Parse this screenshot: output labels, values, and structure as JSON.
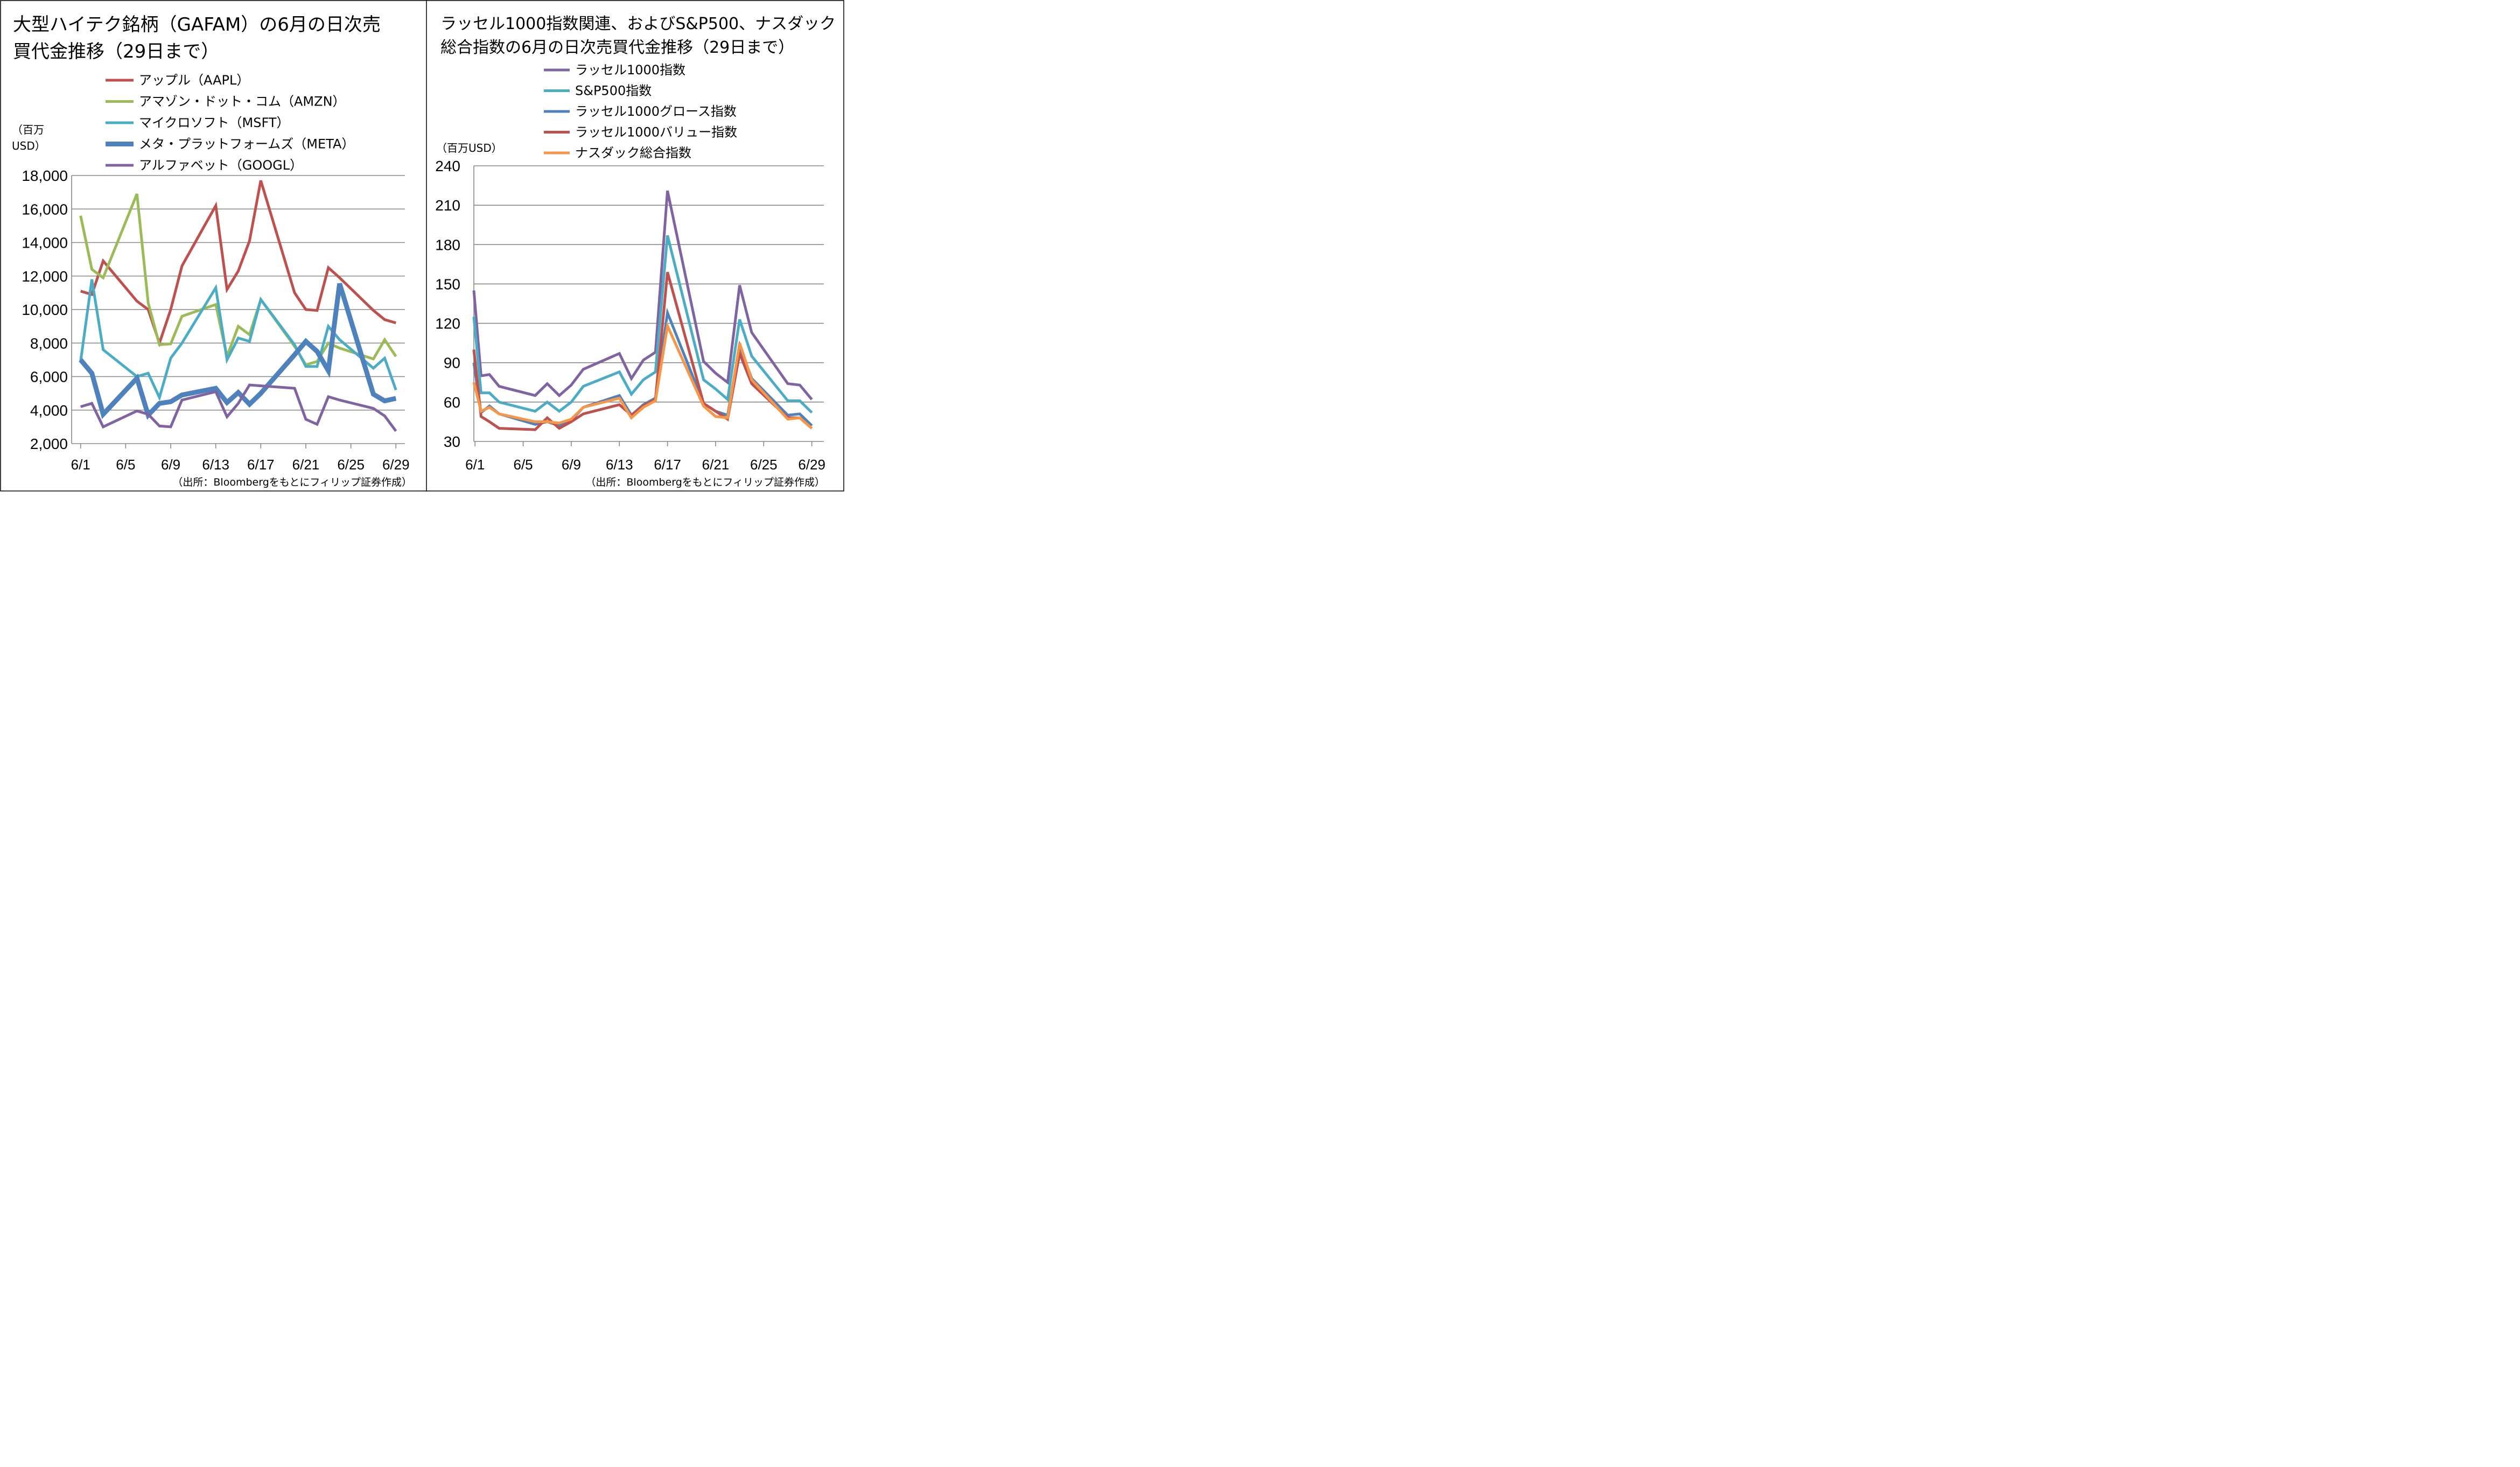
{
  "chart_data": [
    {
      "type": "line",
      "title_lines": [
        "大型ハイテク銘柄（GAFAM）の6月の日次売",
        "買代金推移（29日まで）"
      ],
      "unit_lines": [
        "（百万",
        "USD）"
      ],
      "source": "（出所：Bloombergをもとにフィリップ証券作成）",
      "xlabel": "",
      "ylabel": "",
      "ylim": [
        2000,
        18000
      ],
      "y_ticks": [
        2000,
        4000,
        6000,
        8000,
        10000,
        12000,
        14000,
        16000,
        18000
      ],
      "y_tick_labels": [
        "2,000",
        "4,000",
        "6,000",
        "8,000",
        "10,000",
        "12,000",
        "14,000",
        "16,000",
        "18,000"
      ],
      "x_ticks": [
        1,
        5,
        9,
        13,
        17,
        21,
        25,
        29
      ],
      "x_tick_labels": [
        "6/1",
        "6/5",
        "6/9",
        "6/13",
        "6/17",
        "6/21",
        "6/25",
        "6/29"
      ],
      "x_domain": [
        0.2,
        29.8
      ],
      "dates": [
        1,
        2,
        3,
        6,
        7,
        8,
        9,
        10,
        13,
        14,
        15,
        16,
        17,
        20,
        21,
        22,
        23,
        24,
        27,
        28,
        29
      ],
      "legend_placement": "top",
      "grid": true,
      "series": [
        {
          "name": "アップル（AAPL）",
          "color": "#C0504D",
          "width": 5,
          "values": [
            11100,
            10900,
            12900,
            10500,
            10000,
            8000,
            10000,
            12600,
            16200,
            11200,
            12300,
            14100,
            17700,
            11000,
            10000,
            9950,
            12500,
            11900,
            9950,
            9400,
            9200
          ]
        },
        {
          "name": "アマゾン・ドット・コム（AMZN）",
          "color": "#9BBB59",
          "width": 5,
          "values": [
            15600,
            12400,
            11900,
            16900,
            10400,
            7900,
            7950,
            9600,
            10300,
            7200,
            9000,
            8500,
            10600,
            7800,
            6700,
            6900,
            8000,
            7700,
            7050,
            8200,
            7200
          ]
        },
        {
          "name": "マイクロソフト（MSFT）",
          "color": "#4BACC6",
          "width": 5,
          "values": [
            6900,
            11800,
            7600,
            6000,
            6200,
            4750,
            7100,
            8000,
            11300,
            7000,
            8300,
            8100,
            10600,
            7900,
            6600,
            6600,
            9000,
            8200,
            6500,
            7100,
            5200
          ]
        },
        {
          "name": "メタ・プラットフォームズ（META）",
          "color": "#4F81BD",
          "width": 9,
          "values": [
            7000,
            6200,
            3750,
            5900,
            3700,
            4400,
            4500,
            4900,
            5300,
            4450,
            5050,
            4350,
            5000,
            7300,
            8100,
            7500,
            6350,
            11550,
            4950,
            4550,
            4700
          ]
        },
        {
          "name": "アルファベット（GOOGL）",
          "color": "#8064A2",
          "width": 5,
          "values": [
            4200,
            4400,
            3000,
            3950,
            3750,
            3050,
            3000,
            4600,
            5100,
            3600,
            4400,
            5500,
            5450,
            5300,
            3450,
            3150,
            4800,
            4600,
            4100,
            3650,
            2750
          ]
        }
      ]
    },
    {
      "type": "line",
      "title_lines": [
        "ラッセル1000指数関連、およびS&P500、ナスダック",
        "総合指数の6月の日次売買代金推移（29日まで）"
      ],
      "unit_lines": [
        "（百万USD）"
      ],
      "source": "（出所：Bloombergをもとにフィリップ証券作成）",
      "xlabel": "",
      "ylabel": "",
      "ylim": [
        30,
        240
      ],
      "y_ticks": [
        30,
        60,
        90,
        120,
        150,
        180,
        210,
        240
      ],
      "y_tick_labels": [
        "30",
        "60",
        "90",
        "120",
        "150",
        "180",
        "210",
        "240"
      ],
      "x_ticks": [
        1,
        5,
        9,
        13,
        17,
        21,
        25,
        29
      ],
      "x_tick_labels": [
        "6/1",
        "6/5",
        "6/9",
        "6/13",
        "6/17",
        "6/21",
        "6/25",
        "6/29"
      ],
      "x_domain": [
        0.9,
        30.0
      ],
      "dates": [
        0.9,
        1.5,
        2.2,
        3,
        6,
        7,
        8,
        9,
        10,
        13,
        14,
        15,
        16,
        17,
        20,
        21,
        22,
        23,
        24,
        27,
        28,
        29
      ],
      "legend_placement": "top",
      "grid": true,
      "series": [
        {
          "name": "ラッセル1000指数",
          "color": "#8064A2",
          "width": 5,
          "values": [
            145,
            80,
            81,
            72,
            65,
            74,
            65,
            73,
            85,
            97,
            78,
            92,
            98,
            221,
            91,
            82,
            75,
            149,
            113,
            74,
            73,
            62
          ]
        },
        {
          "name": "S&P500指数",
          "color": "#4BACC6",
          "width": 5,
          "values": [
            125,
            67,
            67,
            60,
            53,
            60,
            53,
            60,
            72,
            83,
            66,
            77,
            83,
            187,
            77,
            70,
            62,
            123,
            95,
            61,
            61,
            52
          ]
        },
        {
          "name": "ラッセル1000グロース指数",
          "color": "#4F81BD",
          "width": 5,
          "values": [
            90,
            52,
            57,
            51,
            43,
            45,
            42,
            46,
            56,
            65,
            50,
            58,
            63,
            128,
            59,
            53,
            50,
            103,
            78,
            50,
            51,
            42
          ]
        },
        {
          "name": "ラッセル1000バリュー指数",
          "color": "#C0504D",
          "width": 5,
          "values": [
            100,
            49,
            45,
            40,
            39,
            48,
            40,
            45,
            51,
            58,
            50,
            57,
            62,
            159,
            59,
            53,
            47,
            97,
            74,
            48,
            48,
            40
          ]
        },
        {
          "name": "ナスダック総合指数",
          "color": "#F79646",
          "width": 5,
          "values": [
            75,
            53,
            56,
            51,
            45,
            45,
            44,
            47,
            56,
            63,
            48,
            56,
            61,
            118,
            57,
            49,
            48,
            105,
            77,
            47,
            48,
            40
          ]
        }
      ]
    }
  ]
}
